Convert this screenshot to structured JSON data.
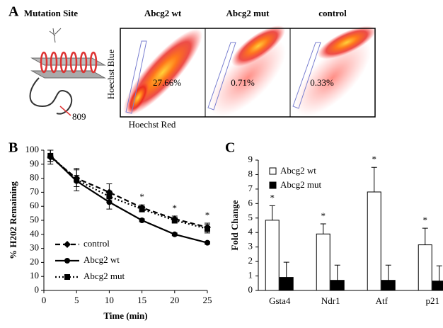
{
  "panel_a": {
    "label": "A",
    "mutation_site": {
      "title": "Mutation Site",
      "residue": "809"
    },
    "flow_plots": [
      {
        "title": "Abcg2 wt",
        "percent": "27.66%"
      },
      {
        "title": "Abcg2 mut",
        "percent": "0.71%"
      },
      {
        "title": "control",
        "percent": "0.33%"
      }
    ],
    "y_axis_label": "Hoechst Blue",
    "x_axis_label": "Hoechst Red"
  },
  "chart_data": [
    {
      "type": "line",
      "panel_label": "B",
      "x_label": "Time (min)",
      "y_label": "% H202 Remaining",
      "x": [
        1,
        5,
        10,
        15,
        20,
        25
      ],
      "xlim": [
        0,
        25
      ],
      "xticks": [
        0,
        5,
        10,
        15,
        20,
        25
      ],
      "ylim": [
        0,
        100
      ],
      "yticks": [
        0,
        10,
        20,
        30,
        40,
        50,
        60,
        70,
        80,
        90,
        100
      ],
      "legend": "lower left",
      "series": [
        {
          "name": "control",
          "color": "#000000",
          "line_style": "dashed",
          "marker": "diamond",
          "values": [
            95,
            80,
            70,
            59,
            51,
            45
          ],
          "errors": [
            5,
            6,
            6,
            2,
            2,
            3
          ]
        },
        {
          "name": "Abcg2 wt",
          "color": "#000000",
          "line_style": "solid",
          "marker": "circle",
          "values": [
            96,
            78,
            63,
            50,
            40,
            34
          ],
          "errors": [
            4,
            4,
            5,
            1,
            1,
            1
          ]
        },
        {
          "name": "Abcg2 mut",
          "color": "#000000",
          "line_style": "dotted",
          "marker": "square",
          "values": [
            96,
            79,
            67,
            58,
            50,
            44
          ],
          "errors": [
            4,
            8,
            4,
            2,
            2,
            3
          ]
        }
      ],
      "significance": [
        {
          "x": 15,
          "label": "*"
        },
        {
          "x": 20,
          "label": "*"
        },
        {
          "x": 25,
          "label": "*"
        }
      ]
    },
    {
      "type": "bar",
      "panel_label": "C",
      "y_label": "Fold Change",
      "categories": [
        "Gsta4",
        "Ndr1",
        "Atf",
        "p21"
      ],
      "ylim": [
        0,
        9
      ],
      "yticks": [
        0,
        1,
        2,
        3,
        4,
        5,
        6,
        7,
        8,
        9
      ],
      "legend": "upper left",
      "series": [
        {
          "name": "Abcg2 wt",
          "color": "#ffffff",
          "values": [
            4.85,
            3.9,
            6.8,
            3.15
          ],
          "errors": [
            1.0,
            0.7,
            1.7,
            1.15
          ]
        },
        {
          "name": "Abcg2 mut",
          "color": "#000000",
          "values": [
            0.9,
            0.7,
            0.7,
            0.65
          ],
          "errors": [
            1.05,
            1.05,
            1.05,
            1.05
          ]
        }
      ],
      "significance": [
        "*",
        "*",
        "*",
        "*"
      ]
    }
  ]
}
